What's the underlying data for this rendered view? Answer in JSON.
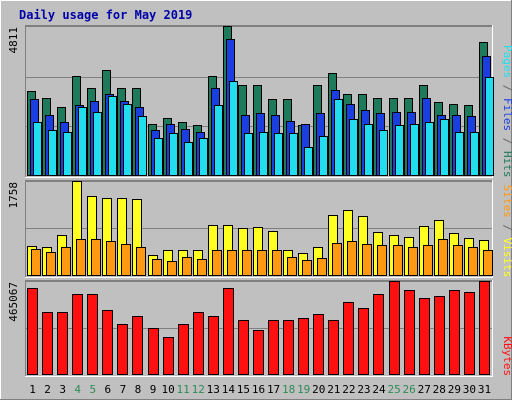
{
  "chart_data": {
    "type": "bar",
    "title": "Daily usage for May 2019",
    "categories": [
      "1",
      "2",
      "3",
      "4",
      "5",
      "6",
      "7",
      "8",
      "9",
      "10",
      "11",
      "12",
      "13",
      "14",
      "15",
      "16",
      "17",
      "18",
      "19",
      "20",
      "21",
      "22",
      "23",
      "24",
      "25",
      "26",
      "27",
      "28",
      "29",
      "30",
      "31"
    ],
    "weekend_days": [
      "4",
      "5",
      "11",
      "12",
      "18",
      "19",
      "25",
      "26"
    ],
    "panels": [
      {
        "id": "top",
        "ymax_label": "4811",
        "ymax": 4811,
        "grid": true,
        "series": [
          {
            "name": "Hits",
            "color": "#1e7a5a",
            "values": [
              2700,
              2500,
              2200,
              3200,
              2800,
              3400,
              2800,
              2800,
              1650,
              1850,
              1700,
              1600,
              3200,
              4811,
              2900,
              2900,
              2450,
              2450,
              1620,
              2900,
              3300,
              2600,
              2600,
              2500,
              2500,
              2500,
              2900,
              2350,
              2300,
              2250,
              4300
            ]
          },
          {
            "name": "Files",
            "color": "#1a3ee0",
            "values": [
              2450,
              1950,
              1700,
              2250,
              2400,
              2600,
              2400,
              2200,
              1450,
              1650,
              1500,
              1400,
              2800,
              4400,
              1950,
              2000,
              1950,
              1750,
              1650,
              2000,
              2750,
              2300,
              2100,
              2000,
              2050,
              2050,
              2500,
              1950,
              1950,
              1900,
              3850
            ]
          },
          {
            "name": "Pages",
            "color": "#22ddee",
            "values": [
              1700,
              1450,
              1400,
              2200,
              2050,
              2550,
              2300,
              1900,
              1200,
              1350,
              1050,
              1200,
              2250,
              3050,
              1350,
              1400,
              1350,
              1350,
              900,
              1250,
              2450,
              1800,
              1650,
              1450,
              1600,
              1650,
              1700,
              1800,
              1400,
              1400,
              3150
            ]
          }
        ],
        "legend": [
          "Pages",
          "/",
          "Files",
          "/",
          "Hits"
        ],
        "legend_colors": [
          "#22ddee",
          "#666666",
          "#1a3ee0",
          "#666666",
          "#1e7a5a"
        ]
      },
      {
        "id": "middle",
        "ymax_label": "1758",
        "ymax": 1758,
        "grid": true,
        "series": [
          {
            "name": "Visits",
            "color": "#ffff22",
            "values": [
              540,
              520,
              740,
              1758,
              1470,
              1440,
              1440,
              1420,
              380,
              470,
              460,
              460,
              940,
              940,
              880,
              900,
              830,
              470,
              420,
              520,
              1120,
              1220,
              1100,
              800,
              740,
              720,
              920,
              1020,
              780,
              700,
              660
            ]
          },
          {
            "name": "Sites",
            "color": "#ff9912",
            "values": [
              480,
              430,
              520,
              680,
              680,
              640,
              580,
              520,
              300,
              260,
              330,
              300,
              470,
              470,
              470,
              470,
              460,
              330,
              280,
              320,
              600,
              640,
              580,
              560,
              570,
              520,
              560,
              680,
              560,
              520,
              460
            ]
          }
        ],
        "legend": [
          "Sites",
          "/",
          "Visits"
        ],
        "legend_colors": [
          "#ff9912",
          "#666666",
          "#ffff22"
        ]
      },
      {
        "id": "bottom",
        "ymax_label": "465067",
        "ymax": 465067,
        "grid": true,
        "series": [
          {
            "name": "KBytes",
            "color": "#ff1010",
            "values": [
              430000,
              312000,
              312000,
              400000,
              400000,
              320000,
              250000,
              290000,
              230000,
              185000,
              250000,
              310000,
              290000,
              430000,
              270000,
              220000,
              270000,
              270000,
              280000,
              300000,
              270000,
              360000,
              330000,
              400000,
              465067,
              420000,
              380000,
              390000,
              420000,
              410000,
              465067
            ]
          }
        ],
        "legend": [
          "KBytes"
        ],
        "legend_colors": [
          "#ff1010"
        ]
      }
    ]
  }
}
